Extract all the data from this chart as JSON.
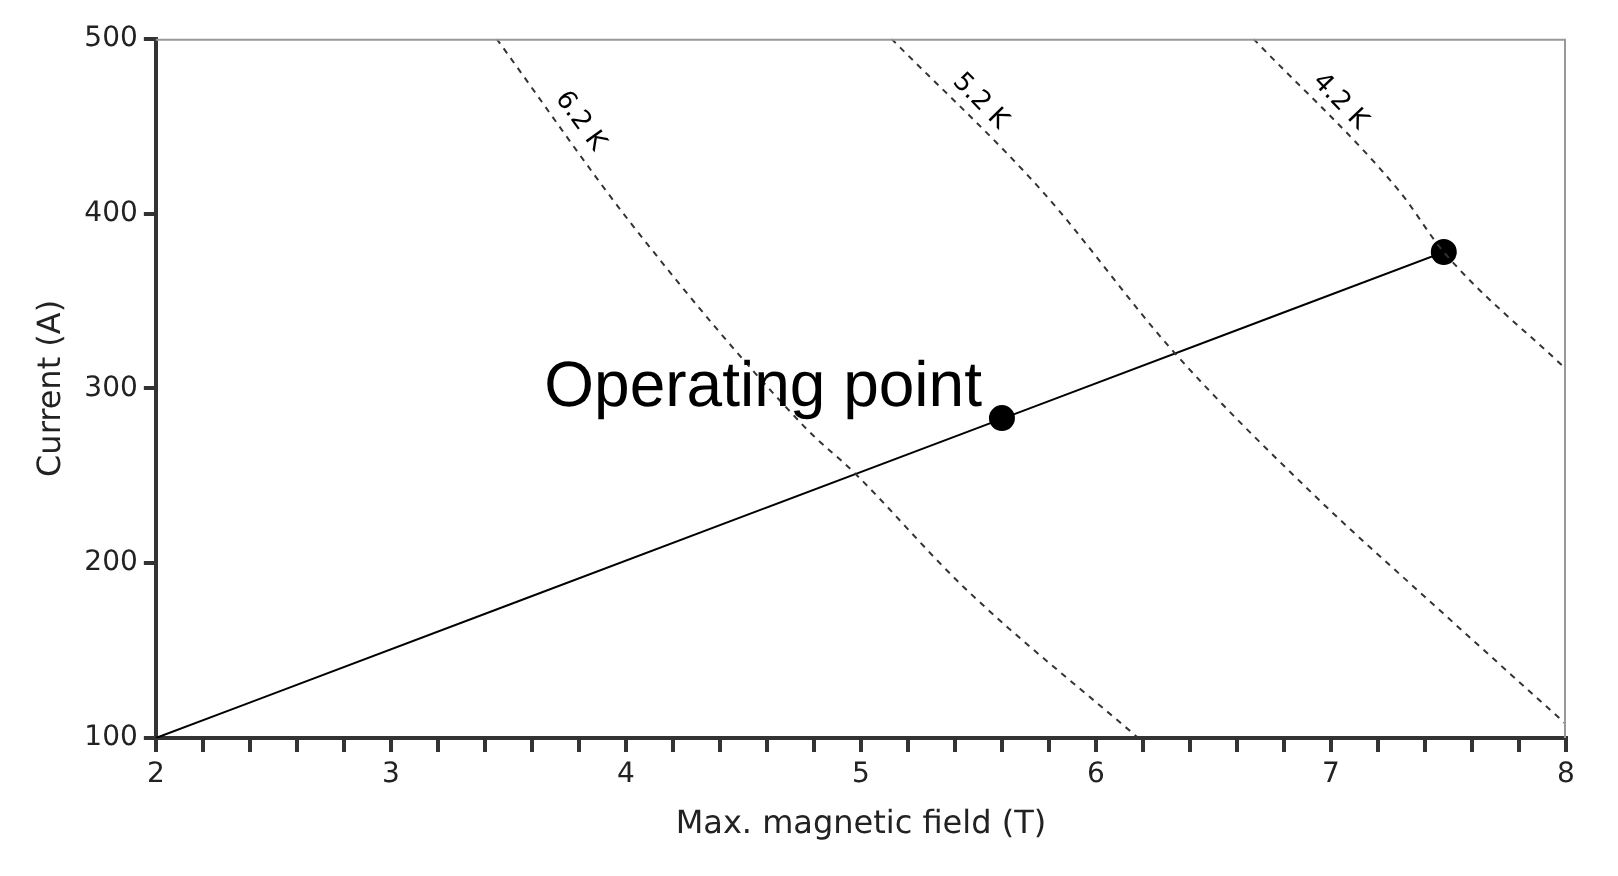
{
  "chart_data": {
    "type": "line",
    "xlabel": "Max. magnetic field (T)",
    "ylabel": "Current (A)",
    "xlim": [
      2,
      8
    ],
    "ylim": [
      100,
      500
    ],
    "xticks": [
      2,
      {
        "value": 2.2,
        "label": null
      },
      {
        "value": 2.4,
        "label": null
      },
      {
        "value": 2.6,
        "label": null
      },
      {
        "value": 2.8,
        "label": null
      },
      3,
      {
        "value": 3.2,
        "label": null
      },
      {
        "value": 3.4,
        "label": null
      },
      {
        "value": 3.6,
        "label": null
      },
      {
        "value": 3.8,
        "label": null
      },
      4,
      {
        "value": 4.2,
        "label": null
      },
      {
        "value": 4.4,
        "label": null
      },
      {
        "value": 4.6,
        "label": null
      },
      {
        "value": 4.8,
        "label": null
      },
      5,
      {
        "value": 5.2,
        "label": null
      },
      {
        "value": 5.4,
        "label": null
      },
      {
        "value": 5.6,
        "label": null
      },
      {
        "value": 5.8,
        "label": null
      },
      6,
      {
        "value": 6.2,
        "label": null
      },
      {
        "value": 6.4,
        "label": null
      },
      {
        "value": 6.6,
        "label": null
      },
      {
        "value": 6.8,
        "label": null
      },
      7,
      {
        "value": 7.2,
        "label": null
      },
      {
        "value": 7.4,
        "label": null
      },
      {
        "value": 7.6,
        "label": null
      },
      {
        "value": 7.8,
        "label": null
      },
      8
    ],
    "yticks": [
      100,
      200,
      300,
      400,
      500
    ],
    "grid": false,
    "legend": false,
    "series": [
      {
        "name": "6.2 K",
        "type": "line",
        "color": "#333333",
        "line_style": "dashed",
        "marker": "none",
        "x": [
          3.45,
          4.03,
          4.76,
          4.97,
          5.44,
          6.18
        ],
        "values": [
          500,
          393,
          278,
          252,
          186,
          100
        ]
      },
      {
        "name": "5.2 K",
        "type": "line",
        "color": "#333333",
        "line_style": "dashed",
        "marker": "none",
        "x": [
          5.13,
          5.77,
          6.33,
          6.92,
          7.48,
          8
        ],
        "values": [
          500,
          413,
          321,
          240,
          171,
          108
        ]
      },
      {
        "name": "4.2 K",
        "type": "line",
        "color": "#333333",
        "line_style": "dashed",
        "marker": "none",
        "x": [
          6.67,
          7.29,
          7.48,
          8
        ],
        "values": [
          500,
          413,
          378,
          311
        ]
      },
      {
        "type": "line",
        "color": "#000000",
        "line_style": "solid",
        "marker": "none",
        "x": [
          2,
          7.48
        ],
        "values": [
          100,
          378
        ]
      },
      {
        "type": "scatter",
        "color": "#000000",
        "marker": "circle",
        "x": [
          5.6,
          7.48
        ],
        "values": [
          283,
          378
        ]
      }
    ],
    "annotations": [
      {
        "text": "Operating point",
        "x": 5.6,
        "y": 283
      }
    ]
  }
}
